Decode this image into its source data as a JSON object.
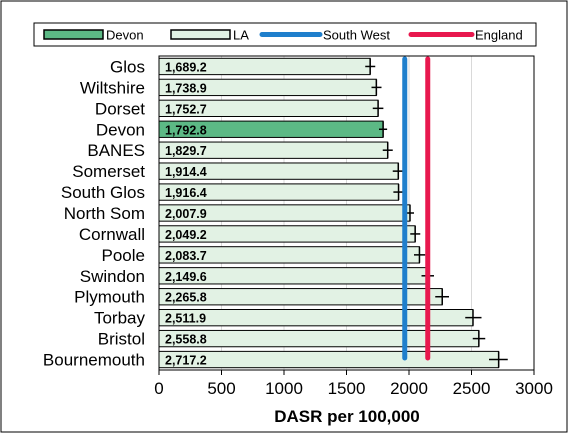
{
  "chart_data": {
    "type": "bar",
    "orientation": "horizontal",
    "title": "",
    "xlabel": "DASR per 100,000",
    "ylabel": "",
    "xlim": [
      0,
      3000
    ],
    "xticks": [
      0,
      500,
      1000,
      1500,
      2000,
      2500,
      3000
    ],
    "grid": "vertical",
    "legend_position": "top",
    "categories": [
      "Glos",
      "Wiltshire",
      "Dorset",
      "Devon",
      "BANES",
      "Somerset",
      "South Glos",
      "North Som",
      "Cornwall",
      "Poole",
      "Swindon",
      "Plymouth",
      "Torbay",
      "Bristol",
      "Bournemouth"
    ],
    "values": [
      1689.2,
      1738.9,
      1752.7,
      1792.8,
      1829.7,
      1914.4,
      1916.4,
      2007.9,
      2049.2,
      2083.7,
      2149.6,
      2265.8,
      2511.9,
      2558.8,
      2717.2
    ],
    "value_labels": [
      "1,689.2",
      "1,738.9",
      "1,752.7",
      "1,792.8",
      "1,829.7",
      "1,914.4",
      "1,916.4",
      "2,007.9",
      "2,049.2",
      "2,083.7",
      "2,149.6",
      "2,265.8",
      "2,511.9",
      "2,558.8",
      "2,717.2"
    ],
    "error_bars": [
      [
        1650,
        1730
      ],
      [
        1700,
        1780
      ],
      [
        1710,
        1795
      ],
      [
        1760,
        1825
      ],
      [
        1790,
        1870
      ],
      [
        1870,
        1960
      ],
      [
        1875,
        1960
      ],
      [
        1975,
        2040
      ],
      [
        2010,
        2090
      ],
      [
        2040,
        2130
      ],
      [
        2100,
        2200
      ],
      [
        2210,
        2320
      ],
      [
        2450,
        2580
      ],
      [
        2510,
        2610
      ],
      [
        2640,
        2790
      ]
    ],
    "highlight": "Devon",
    "reference_lines": [
      {
        "name": "South West",
        "value": 1966,
        "color": "#1f7fcc"
      },
      {
        "name": "England",
        "value": 2150,
        "color": "#e8184e"
      }
    ],
    "legend": [
      {
        "label": "Devon",
        "kind": "bar",
        "fill": "#5cb985"
      },
      {
        "label": "LA",
        "kind": "bar",
        "fill": "#e2f2e4"
      },
      {
        "label": "South West",
        "kind": "line",
        "color": "#1f7fcc"
      },
      {
        "label": "England",
        "kind": "line",
        "color": "#e8184e"
      }
    ],
    "colors": {
      "bar": "#e2f2e4",
      "highlight": "#5cb985",
      "bar_border": "#000000",
      "grid": "#d9d9d9"
    }
  }
}
